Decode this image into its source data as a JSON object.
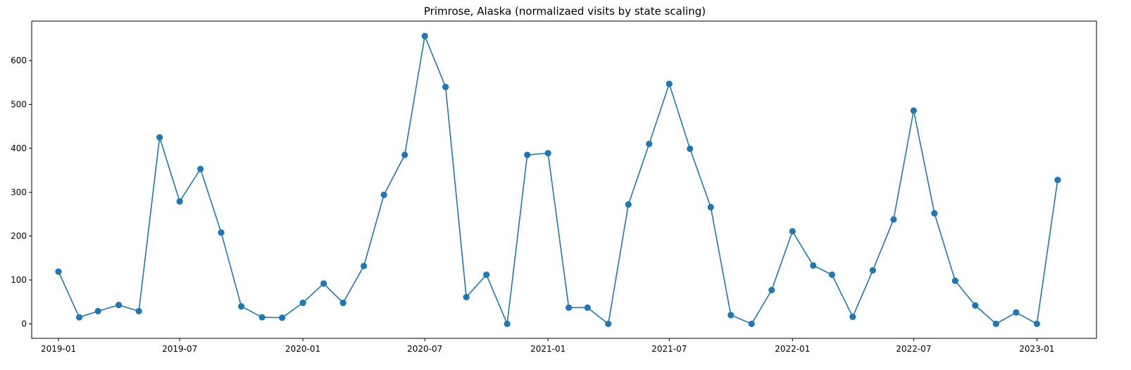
{
  "chart_data": {
    "type": "line",
    "title": "Primrose, Alaska (normalizaed visits by state scaling)",
    "xlabel": "",
    "ylabel": "",
    "x_tick_labels": [
      "2019-01",
      "2019-07",
      "2020-01",
      "2020-07",
      "2021-01",
      "2021-07",
      "2022-01",
      "2022-07",
      "2023-01"
    ],
    "y_ticks": [
      0,
      100,
      200,
      300,
      400,
      500,
      600
    ],
    "xlim": [
      "2018-11-22",
      "2023-03-31"
    ],
    "ylim": [
      -33,
      690
    ],
    "grid": false,
    "line_color": "#1f77b4",
    "marker": "circle",
    "series": [
      {
        "x": [
          "2019-01-01",
          "2019-02-01",
          "2019-03-01",
          "2019-04-01",
          "2019-05-01",
          "2019-06-01",
          "2019-07-01",
          "2019-08-01",
          "2019-09-01",
          "2019-10-01",
          "2019-11-01",
          "2019-12-01",
          "2020-01-01",
          "2020-02-01",
          "2020-03-01",
          "2020-04-01",
          "2020-05-01",
          "2020-06-01",
          "2020-07-01",
          "2020-08-01",
          "2020-09-01",
          "2020-10-01",
          "2020-11-01",
          "2020-12-01",
          "2021-01-01",
          "2021-02-01",
          "2021-03-01",
          "2021-04-01",
          "2021-05-01",
          "2021-06-01",
          "2021-07-01",
          "2021-08-01",
          "2021-09-01",
          "2021-10-01",
          "2021-11-01",
          "2021-12-01",
          "2022-01-01",
          "2022-02-01",
          "2022-03-01",
          "2022-04-01",
          "2022-05-01",
          "2022-06-01",
          "2022-07-01",
          "2022-08-01",
          "2022-09-01",
          "2022-10-01",
          "2022-11-01",
          "2022-12-01",
          "2023-01-01",
          "2023-02-01"
        ],
        "values": [
          119,
          15,
          29,
          43,
          29,
          425,
          279,
          353,
          208,
          40,
          15,
          14,
          48,
          92,
          48,
          132,
          294,
          385,
          656,
          540,
          61,
          112,
          0,
          385,
          389,
          37,
          37,
          0,
          272,
          410,
          547,
          399,
          266,
          20,
          0,
          77,
          211,
          133,
          112,
          16,
          122,
          238,
          486,
          252,
          98,
          42,
          0,
          26,
          0,
          328
        ]
      }
    ]
  }
}
